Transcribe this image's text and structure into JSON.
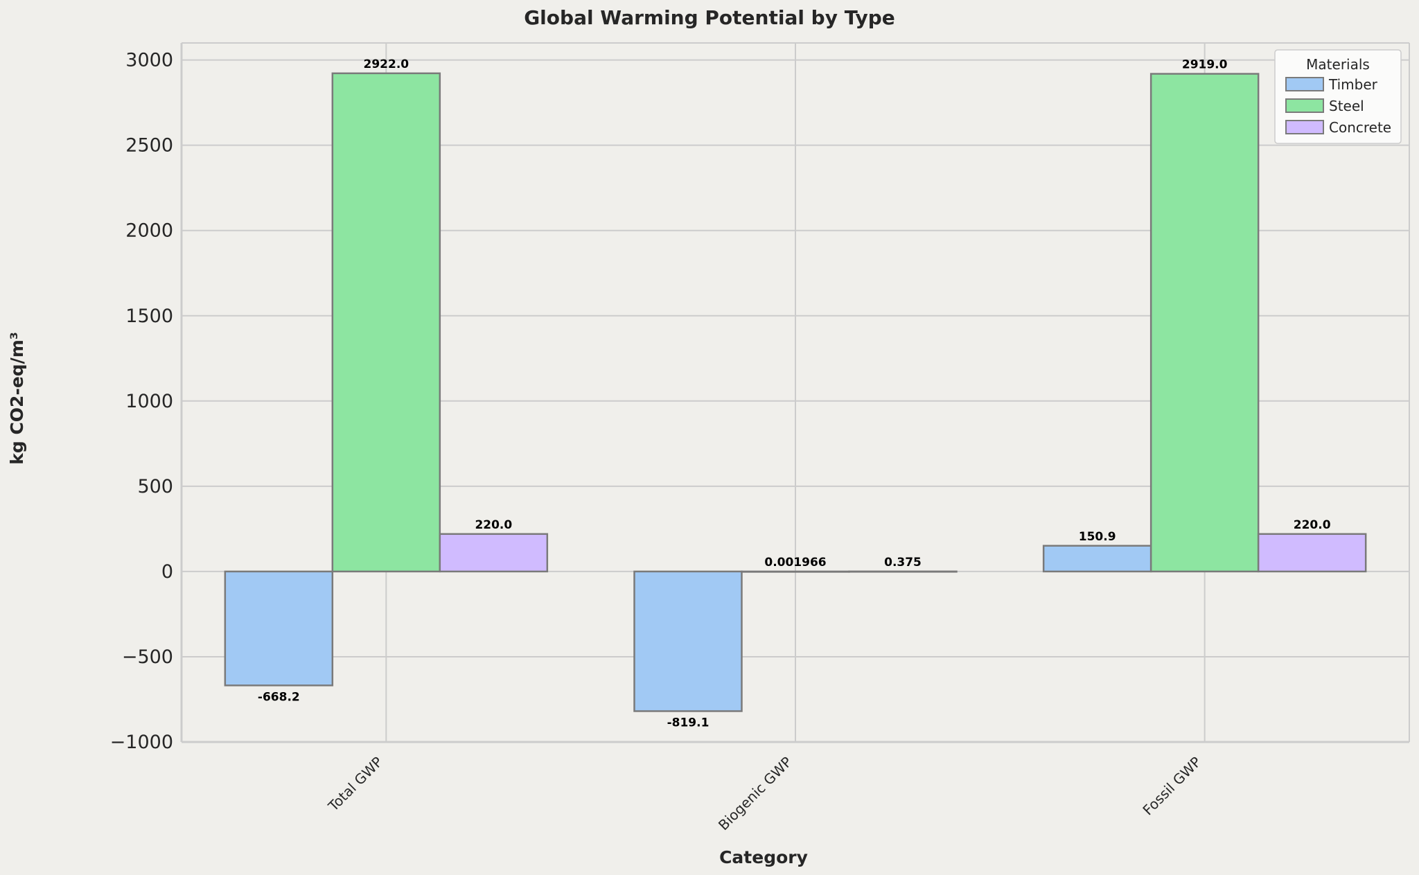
{
  "chart_data": {
    "type": "bar",
    "title": "Global Warming Potential by Type",
    "xlabel": "Category",
    "ylabel": "kg CO2-eq/m³",
    "categories": [
      "Total GWP",
      "Biogenic GWP",
      "Fossil GWP"
    ],
    "series": [
      {
        "name": "Timber",
        "color": "#a1c9f4",
        "values": [
          -668.2,
          -819.1,
          150.9
        ],
        "labels": [
          "-668.2",
          "-819.1",
          "150.9"
        ]
      },
      {
        "name": "Steel",
        "color": "#8de5a1",
        "values": [
          2922.0,
          0.001966,
          2919.0
        ],
        "labels": [
          "2922.0",
          "0.001966",
          "2919.0"
        ]
      },
      {
        "name": "Concrete",
        "color": "#d0bbff",
        "values": [
          220.0,
          0.375,
          220.0
        ],
        "labels": [
          "220.0",
          "0.375",
          "220.0"
        ]
      }
    ],
    "ylim": [
      -1000,
      3100
    ],
    "yticks": [
      -1000,
      -500,
      0,
      500,
      1000,
      1500,
      2000,
      2500,
      3000
    ],
    "ytick_labels": [
      "−1000",
      "−500",
      "0",
      "500",
      "1000",
      "1500",
      "2000",
      "2500",
      "3000"
    ],
    "grid": true,
    "legend": {
      "title": "Materials",
      "position": "top-right"
    },
    "colors": {
      "background": "#f0efeb",
      "grid": "#cccccc",
      "edge": "#7a7a7a"
    }
  }
}
